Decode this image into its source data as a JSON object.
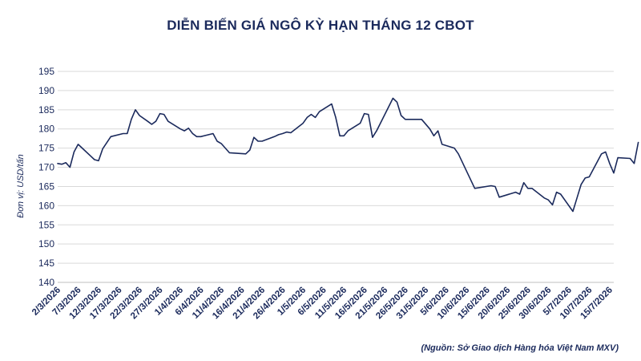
{
  "chart_data": {
    "type": "line",
    "title": "DIỄN BIẾN GIÁ NGÔ KỲ HẠN THÁNG 12 CBOT",
    "ylabel": "Đơn vị: USD/tấn",
    "source": "(Nguồn: Sở Giao dịch Hàng hóa Việt Nam MXV)",
    "ylim": [
      140,
      195
    ],
    "yticks": [
      140,
      145,
      150,
      155,
      160,
      165,
      170,
      175,
      180,
      185,
      190,
      195
    ],
    "grid": true,
    "line_color": "#1b2a5c",
    "x_tick_labels": [
      "2/3/2026",
      "7/3/2026",
      "12/3/2026",
      "17/3/2026",
      "22/3/2026",
      "27/3/2026",
      "1/4/2026",
      "6/4/2026",
      "11/4/2026",
      "16/4/2026",
      "21/4/2026",
      "26/4/2026",
      "1/5/2026",
      "6/5/2026",
      "11/5/2026",
      "16/5/2026",
      "21/5/2026",
      "26/5/2026",
      "31/5/2026",
      "5/6/2026",
      "10/6/2026",
      "15/6/2026",
      "20/6/2026",
      "25/6/2026",
      "30/6/2026",
      "5/7/2026",
      "10/7/2026",
      "15/7/2026"
    ],
    "x_start": "2026-03-02",
    "x_end": "2026-07-16",
    "series": [
      {
        "points": [
          [
            "2026-03-02",
            171.0
          ],
          [
            "2026-03-03",
            170.8
          ],
          [
            "2026-03-04",
            171.2
          ],
          [
            "2026-03-05",
            170.0
          ],
          [
            "2026-03-06",
            174.0
          ],
          [
            "2026-03-07",
            176.0
          ],
          [
            "2026-03-08",
            175.0
          ],
          [
            "2026-03-10",
            173.0
          ],
          [
            "2026-03-11",
            172.0
          ],
          [
            "2026-03-12",
            171.7
          ],
          [
            "2026-03-13",
            174.8
          ],
          [
            "2026-03-15",
            178.0
          ],
          [
            "2026-03-18",
            178.8
          ],
          [
            "2026-03-19",
            178.8
          ],
          [
            "2026-03-20",
            182.5
          ],
          [
            "2026-03-21",
            185.0
          ],
          [
            "2026-03-22",
            183.5
          ],
          [
            "2026-03-24",
            182.0
          ],
          [
            "2026-03-25",
            181.2
          ],
          [
            "2026-03-26",
            182.0
          ],
          [
            "2026-03-27",
            184.0
          ],
          [
            "2026-03-28",
            183.8
          ],
          [
            "2026-03-29",
            182.0
          ],
          [
            "2026-04-01",
            180.0
          ],
          [
            "2026-04-02",
            179.5
          ],
          [
            "2026-04-03",
            180.2
          ],
          [
            "2026-04-04",
            178.8
          ],
          [
            "2026-04-05",
            178.0
          ],
          [
            "2026-04-06",
            178.0
          ],
          [
            "2026-04-09",
            178.8
          ],
          [
            "2026-04-10",
            176.8
          ],
          [
            "2026-04-11",
            176.2
          ],
          [
            "2026-04-13",
            173.8
          ],
          [
            "2026-04-17",
            173.5
          ],
          [
            "2026-04-18",
            174.5
          ],
          [
            "2026-04-19",
            177.8
          ],
          [
            "2026-04-20",
            176.8
          ],
          [
            "2026-04-21",
            176.8
          ],
          [
            "2026-04-24",
            178.0
          ],
          [
            "2026-04-25",
            178.5
          ],
          [
            "2026-04-26",
            178.8
          ],
          [
            "2026-04-27",
            179.2
          ],
          [
            "2026-04-28",
            179.0
          ],
          [
            "2026-05-01",
            181.5
          ],
          [
            "2026-05-02",
            183.0
          ],
          [
            "2026-05-03",
            183.8
          ],
          [
            "2026-05-04",
            183.0
          ],
          [
            "2026-05-05",
            184.5
          ],
          [
            "2026-05-08",
            186.5
          ],
          [
            "2026-05-09",
            183.0
          ],
          [
            "2026-05-10",
            178.2
          ],
          [
            "2026-05-11",
            178.2
          ],
          [
            "2026-05-12",
            179.5
          ],
          [
            "2026-05-15",
            181.5
          ],
          [
            "2026-05-16",
            184.0
          ],
          [
            "2026-05-17",
            183.8
          ],
          [
            "2026-05-18",
            177.8
          ],
          [
            "2026-05-19",
            179.5
          ],
          [
            "2026-05-23",
            188.0
          ],
          [
            "2026-05-24",
            187.0
          ],
          [
            "2026-05-25",
            183.5
          ],
          [
            "2026-05-26",
            182.5
          ],
          [
            "2026-05-27",
            182.5
          ],
          [
            "2026-05-30",
            182.5
          ],
          [
            "2026-06-01",
            180.0
          ],
          [
            "2026-06-02",
            178.2
          ],
          [
            "2026-06-03",
            179.5
          ],
          [
            "2026-06-04",
            176.0
          ],
          [
            "2026-06-07",
            175.0
          ],
          [
            "2026-06-08",
            173.5
          ],
          [
            "2026-06-10",
            169.0
          ],
          [
            "2026-06-12",
            164.5
          ],
          [
            "2026-06-16",
            165.2
          ],
          [
            "2026-06-17",
            165.0
          ],
          [
            "2026-06-18",
            162.2
          ],
          [
            "2026-06-22",
            163.5
          ],
          [
            "2026-06-23",
            163.0
          ],
          [
            "2026-06-24",
            166.0
          ],
          [
            "2026-06-25",
            164.5
          ],
          [
            "2026-06-26",
            164.5
          ],
          [
            "2026-06-29",
            162.0
          ],
          [
            "2026-06-30",
            161.5
          ],
          [
            "2026-07-01",
            160.2
          ],
          [
            "2026-07-02",
            163.5
          ],
          [
            "2026-07-03",
            163.0
          ],
          [
            "2026-07-06",
            158.5
          ],
          [
            "2026-07-07",
            162.0
          ],
          [
            "2026-07-08",
            165.5
          ],
          [
            "2026-07-09",
            167.2
          ],
          [
            "2026-07-10",
            167.5
          ],
          [
            "2026-07-13",
            173.5
          ],
          [
            "2026-07-14",
            174.0
          ],
          [
            "2026-07-15",
            171.0
          ],
          [
            "2026-07-16",
            168.5
          ],
          [
            "2026-07-17",
            172.5
          ],
          [
            "2026-07-20",
            172.3
          ],
          [
            "2026-07-21",
            171.0
          ],
          [
            "2026-07-22",
            176.5
          ]
        ]
      }
    ]
  }
}
